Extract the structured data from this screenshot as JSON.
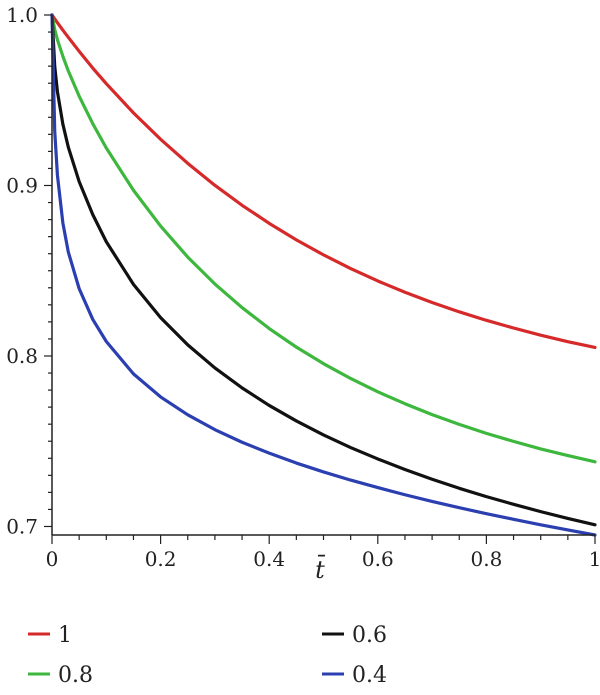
{
  "chart_data": {
    "type": "line",
    "title": "",
    "xlabel": "t̄",
    "ylabel": "",
    "xlim": [
      0,
      1
    ],
    "ylim": [
      0.695,
      1.0
    ],
    "grid": false,
    "legend_position": "bottom",
    "x_ticks": [
      {
        "value": 0,
        "label": "0"
      },
      {
        "value": 0.2,
        "label": "0.2"
      },
      {
        "value": 0.4,
        "label": "0.4"
      },
      {
        "value": 0.6,
        "label": "0.6"
      },
      {
        "value": 0.8,
        "label": "0.8"
      },
      {
        "value": 1,
        "label": "1"
      }
    ],
    "y_ticks": [
      {
        "value": 0.7,
        "label": "0.7"
      },
      {
        "value": 0.8,
        "label": "0.8"
      },
      {
        "value": 0.9,
        "label": "0.9"
      },
      {
        "value": 1.0,
        "label": "1.0"
      }
    ],
    "x": [
      0,
      0.005,
      0.01,
      0.02,
      0.03,
      0.05,
      0.075,
      0.1,
      0.15,
      0.2,
      0.25,
      0.3,
      0.35,
      0.4,
      0.45,
      0.5,
      0.55,
      0.6,
      0.65,
      0.7,
      0.75,
      0.8,
      0.85,
      0.9,
      0.95,
      1.0
    ],
    "series": [
      {
        "name": "1",
        "color": "#d62a2a",
        "values": [
          1.0,
          0.9977,
          0.9955,
          0.9911,
          0.9869,
          0.9787,
          0.9689,
          0.9597,
          0.9426,
          0.9271,
          0.913,
          0.9001,
          0.8884,
          0.8778,
          0.8681,
          0.8593,
          0.8513,
          0.844,
          0.8374,
          0.8314,
          0.8259,
          0.8209,
          0.8164,
          0.8122,
          0.8084,
          0.805
        ]
      },
      {
        "name": "0.8",
        "color": "#3db73d",
        "values": [
          1.0,
          0.9915,
          0.9855,
          0.9758,
          0.9672,
          0.9524,
          0.9363,
          0.922,
          0.8972,
          0.8762,
          0.858,
          0.8422,
          0.8284,
          0.8161,
          0.8052,
          0.7955,
          0.7868,
          0.779,
          0.772,
          0.7656,
          0.7599,
          0.7546,
          0.7499,
          0.7455,
          0.7416,
          0.7379
        ]
      },
      {
        "name": "0.6",
        "color": "#111111",
        "values": [
          1.0,
          0.97,
          0.955,
          0.936,
          0.9225,
          0.9023,
          0.883,
          0.867,
          0.842,
          0.8225,
          0.8065,
          0.793,
          0.7813,
          0.771,
          0.7619,
          0.7537,
          0.7463,
          0.7396,
          0.7334,
          0.7277,
          0.7224,
          0.7175,
          0.713,
          0.7087,
          0.7047,
          0.701
        ]
      },
      {
        "name": "0.4",
        "color": "#2b3fb0",
        "values": [
          1.0,
          0.932,
          0.906,
          0.878,
          0.861,
          0.8395,
          0.8215,
          0.8085,
          0.7895,
          0.776,
          0.7655,
          0.7568,
          0.7494,
          0.743,
          0.7372,
          0.732,
          0.7272,
          0.7228,
          0.7186,
          0.7147,
          0.711,
          0.7075,
          0.7042,
          0.701,
          0.698,
          0.695
        ]
      }
    ]
  }
}
